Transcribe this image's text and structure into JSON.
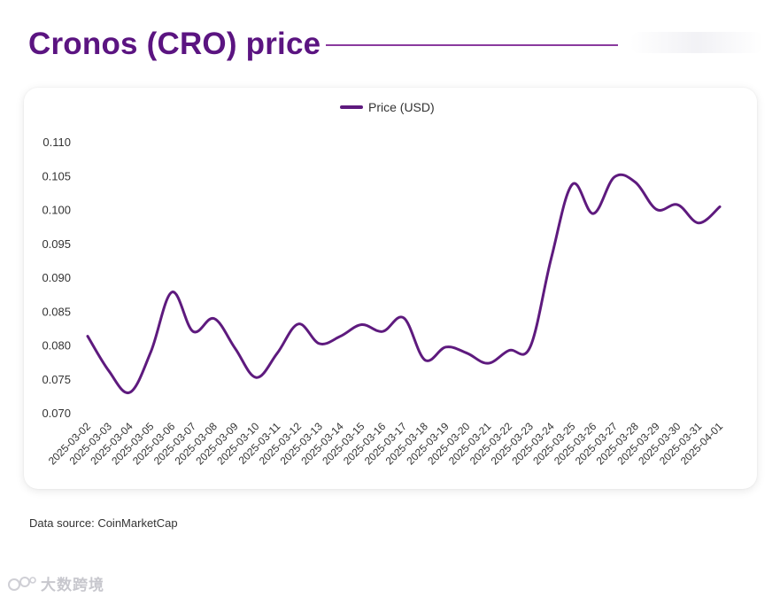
{
  "title": "Cronos (CRO) price",
  "source_note": "Data source: CoinMarketCap",
  "watermark_text": "大数跨境",
  "colors": {
    "accent": "#5b1481",
    "line": "#5e1a7e",
    "rule": "#8a3a9e"
  },
  "chart_data": {
    "type": "line",
    "title": "Cronos (CRO) price",
    "xlabel": "",
    "ylabel": "",
    "ylim": [
      0.07,
      0.11
    ],
    "y_ticks": [
      "0.110",
      "0.105",
      "0.100",
      "0.095",
      "0.090",
      "0.085",
      "0.080",
      "0.075",
      "0.070"
    ],
    "legend": {
      "position": "top-center",
      "label": "Price (USD)"
    },
    "grid": false,
    "categories": [
      "2025-03-02",
      "2025-03-03",
      "2025-03-04",
      "2025-03-05",
      "2025-03-06",
      "2025-03-07",
      "2025-03-08",
      "2025-03-09",
      "2025-03-10",
      "2025-03-11",
      "2025-03-12",
      "2025-03-13",
      "2025-03-14",
      "2025-03-15",
      "2025-03-16",
      "2025-03-17",
      "2025-03-18",
      "2025-03-19",
      "2025-03-20",
      "2025-03-21",
      "2025-03-22",
      "2025-03-23",
      "2025-03-24",
      "2025-03-25",
      "2025-03-26",
      "2025-03-27",
      "2025-03-28",
      "2025-03-29",
      "2025-03-30",
      "2025-03-31",
      "2025-04-01"
    ],
    "series": [
      {
        "name": "Price (USD)",
        "values": [
          0.0813,
          0.0762,
          0.073,
          0.079,
          0.0878,
          0.082,
          0.0839,
          0.0795,
          0.0752,
          0.0788,
          0.0831,
          0.0802,
          0.0813,
          0.083,
          0.082,
          0.084,
          0.0778,
          0.0797,
          0.0788,
          0.0773,
          0.0792,
          0.0797,
          0.0928,
          0.1037,
          0.0994,
          0.1048,
          0.104,
          0.1,
          0.1007,
          0.098,
          0.1004
        ]
      }
    ]
  }
}
